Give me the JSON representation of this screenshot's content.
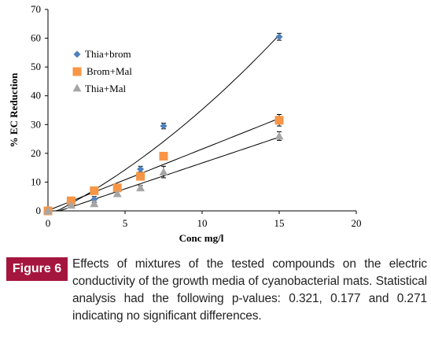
{
  "chart_data": {
    "type": "scatter",
    "xlabel": "Conc mg/l",
    "ylabel": "% EC Reduction",
    "xlim": [
      0,
      20
    ],
    "ylim": [
      0,
      70
    ],
    "xticks": [
      0,
      5,
      10,
      15,
      20
    ],
    "yticks": [
      0,
      10,
      20,
      30,
      40,
      50,
      60,
      70
    ],
    "legend_position": "upper-left",
    "series": [
      {
        "name": "Thia+brom",
        "marker": "diamond",
        "color": "#4f81bd",
        "x": [
          0,
          1.5,
          3,
          6,
          7.5,
          15
        ],
        "y": [
          0,
          3,
          4,
          14.5,
          29.5,
          60.5
        ],
        "err": [
          0,
          0.5,
          1,
          1,
          1,
          1.2
        ],
        "trendline": "polynomial"
      },
      {
        "name": "Brom+Mal",
        "marker": "square",
        "color": "#f79646",
        "x": [
          0,
          1.5,
          3,
          4.5,
          6,
          7.5,
          15
        ],
        "y": [
          0,
          3.5,
          7,
          8,
          12,
          19,
          31.5
        ],
        "err": [
          0,
          0.5,
          0.5,
          0.5,
          0.8,
          1.2,
          2
        ],
        "trendline": "linear"
      },
      {
        "name": "Thia+Mal",
        "marker": "triangle",
        "color": "#a6a6a6",
        "x": [
          0,
          1.5,
          3,
          4.5,
          6,
          7.5,
          15
        ],
        "y": [
          0,
          2,
          2.5,
          6,
          8,
          13.5,
          26
        ],
        "err": [
          0,
          0.8,
          0.5,
          0.8,
          0.8,
          2,
          1.5
        ],
        "trendline": "linear"
      }
    ]
  },
  "caption": {
    "badge": "Figure 6",
    "text": "Effects of mixtures of the tested compounds on the electric conductivity of the growth media of cyanobacterial mats. Statistical analysis had the following p-values: 0.321, 0.177 and 0.271 indicating no significant differences."
  }
}
